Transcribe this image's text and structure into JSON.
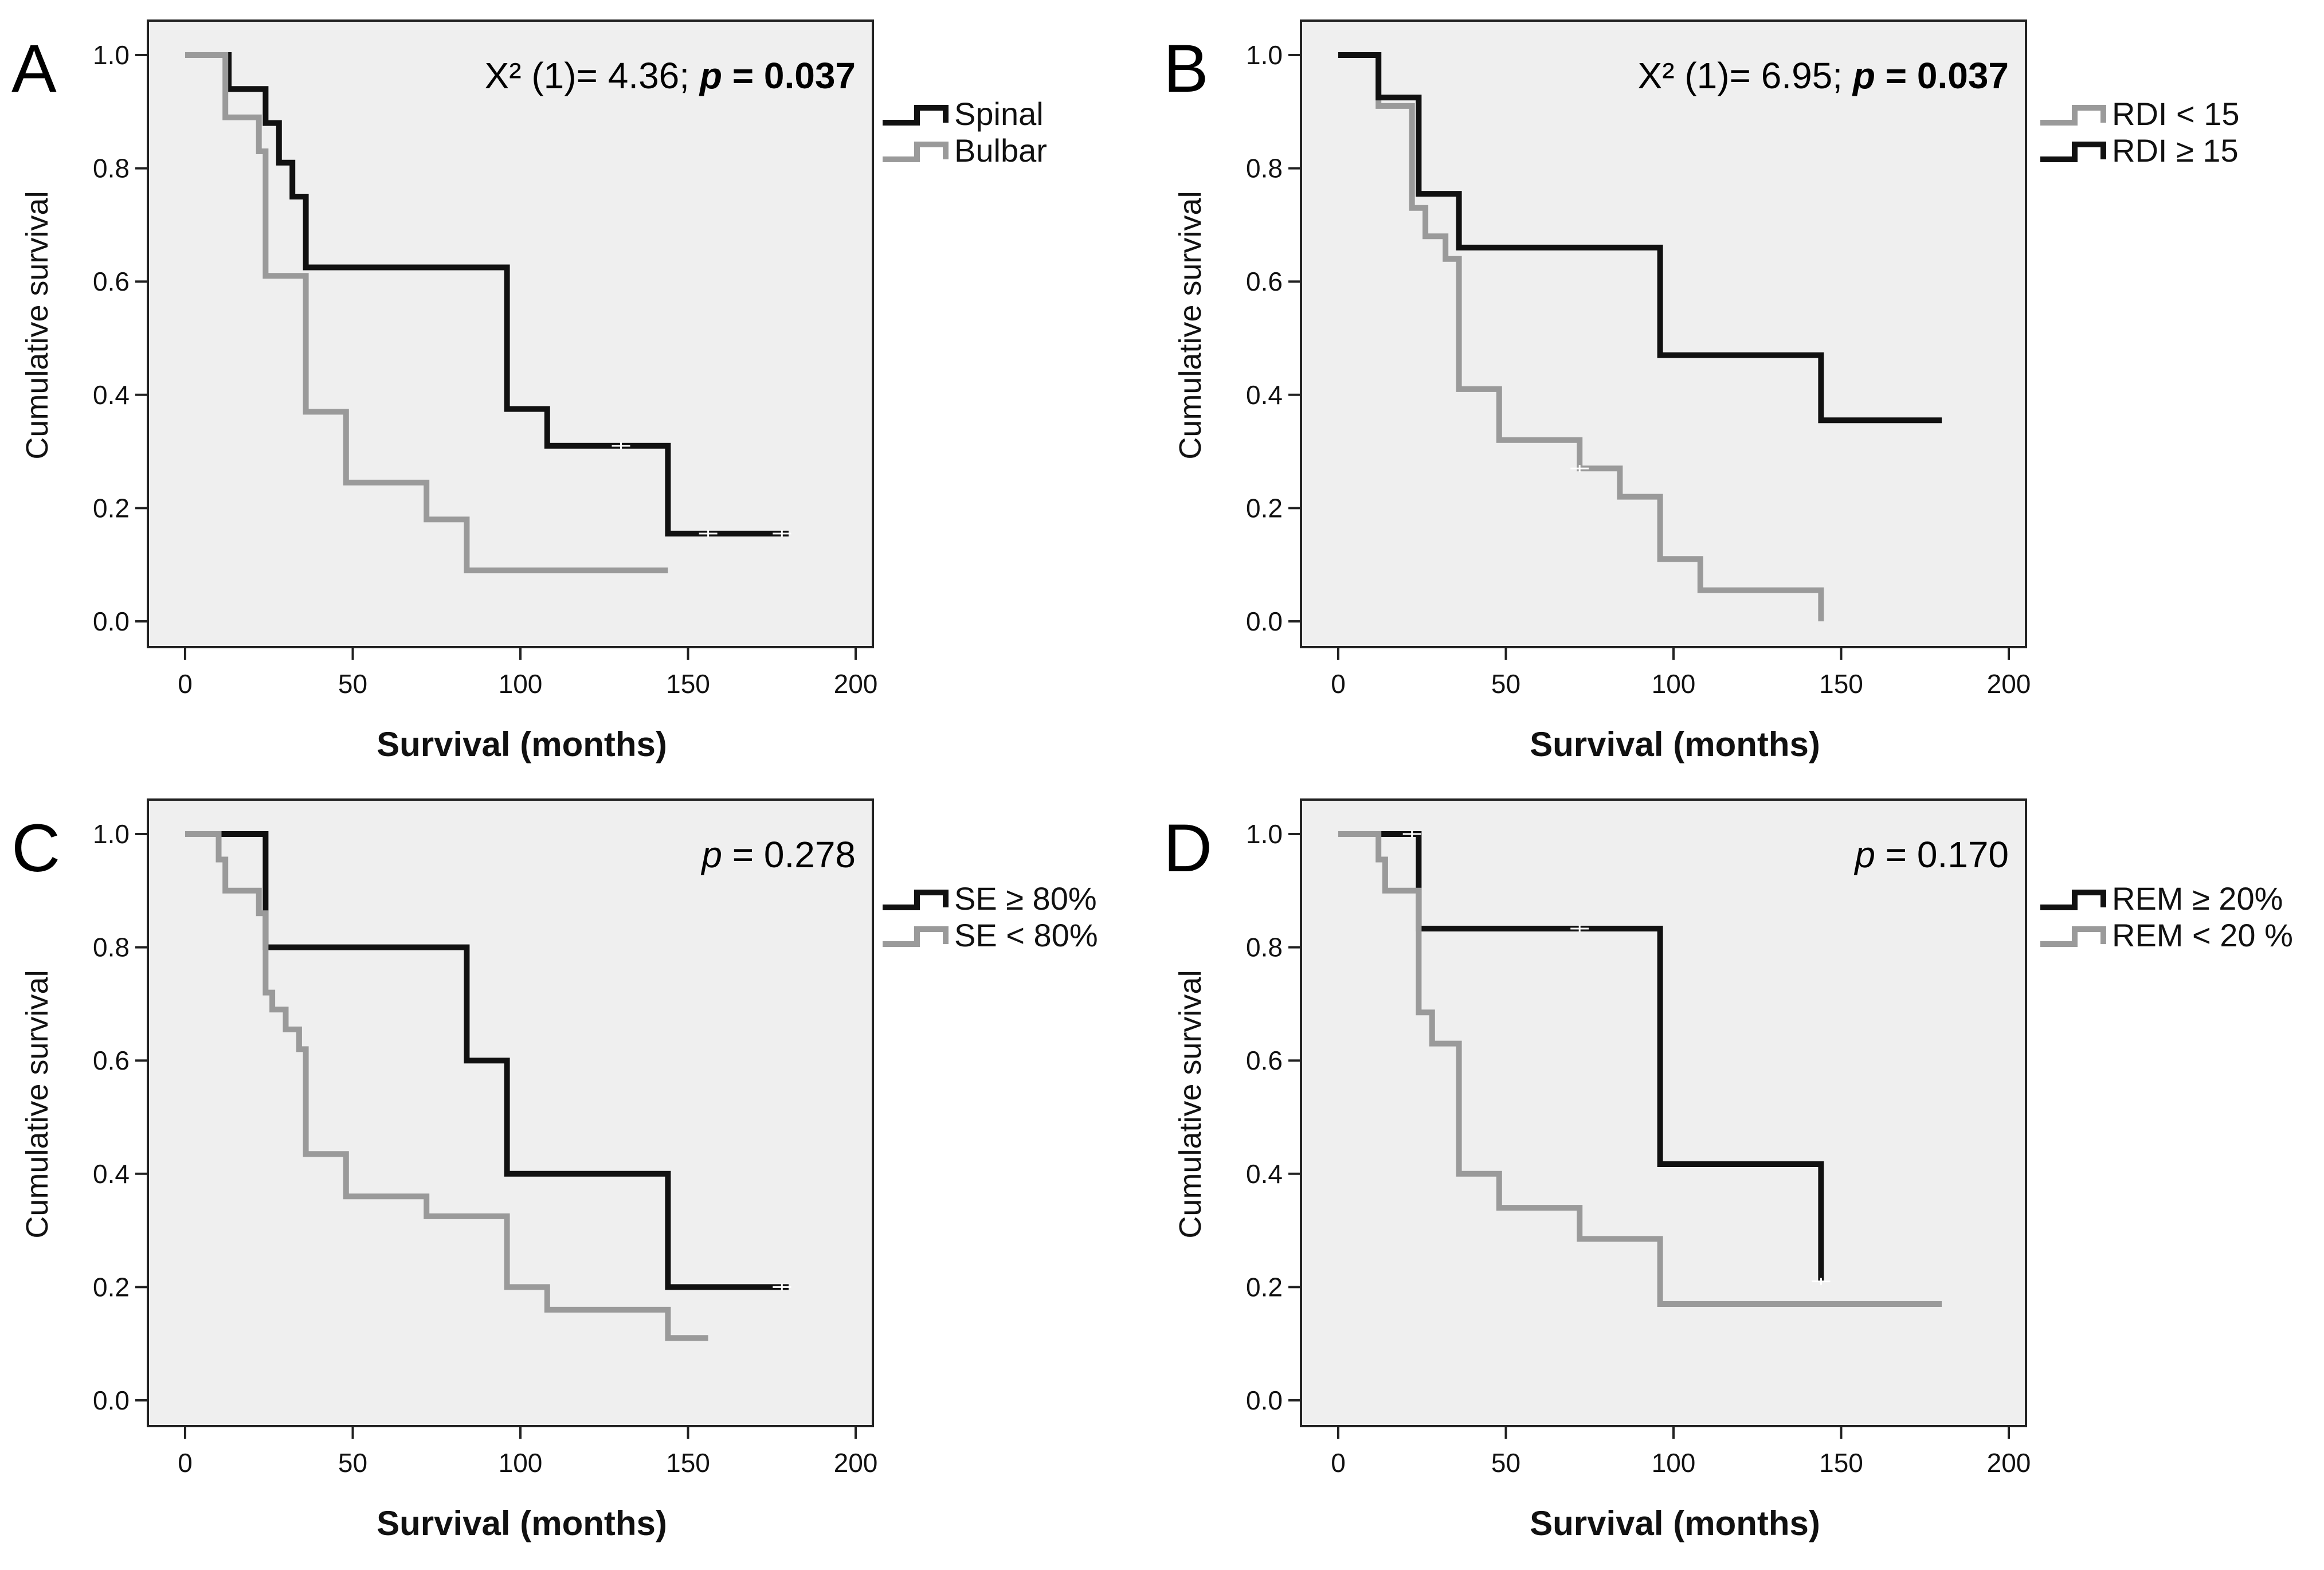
{
  "figure": {
    "colors": {
      "background": "#efefef",
      "series_dark": "#111111",
      "series_light": "#9a9a9a",
      "axis": "#222222"
    }
  },
  "chart_data": [
    {
      "id": "A",
      "panel_label": "A",
      "type": "line",
      "step": true,
      "xlabel": "Survival (months)",
      "ylabel": "Cumulative survival",
      "xlim": [
        0,
        200
      ],
      "ylim": [
        0,
        1.0
      ],
      "xticks": [
        "0",
        "50",
        "100",
        "150",
        "200"
      ],
      "yticks": [
        "0.0",
        "0.2",
        "0.4",
        "0.6",
        "0.8",
        "1.0"
      ],
      "annotation": {
        "stat_prefix": "X² (1)= 4.36; ",
        "p_label": "p",
        "p_value": " = 0.037",
        "style": "bold"
      },
      "legend_position": "right-top",
      "series": [
        {
          "name": "Spinal",
          "color": "#111111",
          "points": [
            [
              0,
              1.0
            ],
            [
              13,
              1.0
            ],
            [
              13,
              0.94
            ],
            [
              24,
              0.94
            ],
            [
              24,
              0.88
            ],
            [
              28,
              0.88
            ],
            [
              28,
              0.81
            ],
            [
              32,
              0.81
            ],
            [
              32,
              0.75
            ],
            [
              36,
              0.75
            ],
            [
              36,
              0.625
            ],
            [
              96,
              0.625
            ],
            [
              96,
              0.375
            ],
            [
              108,
              0.375
            ],
            [
              108,
              0.31
            ],
            [
              144,
              0.31
            ],
            [
              144,
              0.155
            ],
            [
              180,
              0.155
            ]
          ],
          "censored": [
            [
              130,
              0.31
            ],
            [
              156,
              0.155
            ],
            [
              178,
              0.155
            ]
          ]
        },
        {
          "name": "Bulbar",
          "color": "#9a9a9a",
          "points": [
            [
              0,
              1.0
            ],
            [
              12,
              1.0
            ],
            [
              12,
              0.89
            ],
            [
              22,
              0.89
            ],
            [
              22,
              0.83
            ],
            [
              24,
              0.83
            ],
            [
              24,
              0.61
            ],
            [
              36,
              0.61
            ],
            [
              36,
              0.37
            ],
            [
              48,
              0.37
            ],
            [
              48,
              0.245
            ],
            [
              72,
              0.245
            ],
            [
              72,
              0.18
            ],
            [
              84,
              0.18
            ],
            [
              84,
              0.09
            ],
            [
              144,
              0.09
            ]
          ],
          "censored": []
        }
      ]
    },
    {
      "id": "B",
      "panel_label": "B",
      "type": "line",
      "step": true,
      "xlabel": "Survival (months)",
      "ylabel": "Cumulative survival",
      "xlim": [
        0,
        200
      ],
      "ylim": [
        0,
        1.0
      ],
      "xticks": [
        "0",
        "50",
        "100",
        "150",
        "200"
      ],
      "yticks": [
        "0.0",
        "0.2",
        "0.4",
        "0.6",
        "0.8",
        "1.0"
      ],
      "annotation": {
        "stat_prefix": "X² (1)= 6.95; ",
        "p_label": "p",
        "p_value": " = 0.037",
        "style": "bold"
      },
      "legend_position": "right-top",
      "series": [
        {
          "name": "RDI < 15",
          "color": "#9a9a9a",
          "points": [
            [
              0,
              1.0
            ],
            [
              12,
              1.0
            ],
            [
              12,
              0.91
            ],
            [
              22,
              0.91
            ],
            [
              22,
              0.73
            ],
            [
              26,
              0.73
            ],
            [
              26,
              0.68
            ],
            [
              32,
              0.68
            ],
            [
              32,
              0.64
            ],
            [
              36,
              0.64
            ],
            [
              36,
              0.41
            ],
            [
              48,
              0.41
            ],
            [
              48,
              0.32
            ],
            [
              72,
              0.32
            ],
            [
              72,
              0.27
            ],
            [
              84,
              0.27
            ],
            [
              84,
              0.22
            ],
            [
              96,
              0.22
            ],
            [
              96,
              0.11
            ],
            [
              108,
              0.11
            ],
            [
              108,
              0.055
            ],
            [
              144,
              0.055
            ],
            [
              144,
              0.0
            ]
          ],
          "censored": [
            [
              72,
              0.27
            ]
          ]
        },
        {
          "name": "RDI ≥ 15",
          "color": "#111111",
          "points": [
            [
              0,
              1.0
            ],
            [
              12,
              1.0
            ],
            [
              12,
              0.925
            ],
            [
              24,
              0.925
            ],
            [
              24,
              0.755
            ],
            [
              36,
              0.755
            ],
            [
              36,
              0.66
            ],
            [
              96,
              0.66
            ],
            [
              96,
              0.47
            ],
            [
              144,
              0.47
            ],
            [
              144,
              0.355
            ],
            [
              180,
              0.355
            ]
          ],
          "censored": []
        }
      ]
    },
    {
      "id": "C",
      "panel_label": "C",
      "type": "line",
      "step": true,
      "xlabel": "Survival (months)",
      "ylabel": "Cumulative survival",
      "xlim": [
        0,
        200
      ],
      "ylim": [
        0,
        1.0
      ],
      "xticks": [
        "0",
        "50",
        "100",
        "150",
        "200"
      ],
      "yticks": [
        "0.0",
        "0.2",
        "0.4",
        "0.6",
        "0.8",
        "1.0"
      ],
      "annotation": {
        "stat_prefix": "",
        "p_label": "p",
        "p_value": " = 0.278",
        "style": "plain"
      },
      "legend_position": "right-top",
      "series": [
        {
          "name": "SE ≥ 80%",
          "color": "#111111",
          "points": [
            [
              0,
              1.0
            ],
            [
              24,
              1.0
            ],
            [
              24,
              0.8
            ],
            [
              84,
              0.8
            ],
            [
              84,
              0.6
            ],
            [
              96,
              0.6
            ],
            [
              96,
              0.4
            ],
            [
              144,
              0.4
            ],
            [
              144,
              0.2
            ],
            [
              180,
              0.2
            ]
          ],
          "censored": [
            [
              178,
              0.2
            ]
          ]
        },
        {
          "name": "SE < 80%",
          "color": "#9a9a9a",
          "points": [
            [
              0,
              1.0
            ],
            [
              10,
              1.0
            ],
            [
              10,
              0.955
            ],
            [
              12,
              0.955
            ],
            [
              12,
              0.9
            ],
            [
              22,
              0.9
            ],
            [
              22,
              0.86
            ],
            [
              24,
              0.86
            ],
            [
              24,
              0.72
            ],
            [
              26,
              0.72
            ],
            [
              26,
              0.69
            ],
            [
              30,
              0.69
            ],
            [
              30,
              0.655
            ],
            [
              34,
              0.655
            ],
            [
              34,
              0.62
            ],
            [
              36,
              0.62
            ],
            [
              36,
              0.435
            ],
            [
              48,
              0.435
            ],
            [
              48,
              0.36
            ],
            [
              72,
              0.36
            ],
            [
              72,
              0.325
            ],
            [
              96,
              0.325
            ],
            [
              96,
              0.2
            ],
            [
              108,
              0.2
            ],
            [
              108,
              0.16
            ],
            [
              144,
              0.16
            ],
            [
              144,
              0.11
            ],
            [
              156,
              0.11
            ]
          ],
          "censored": []
        }
      ]
    },
    {
      "id": "D",
      "panel_label": "D",
      "type": "line",
      "step": true,
      "xlabel": "Survival (months)",
      "ylabel": "Cumulative survival",
      "xlim": [
        0,
        200
      ],
      "ylim": [
        0,
        1.0
      ],
      "xticks": [
        "0",
        "50",
        "100",
        "150",
        "200"
      ],
      "yticks": [
        "0.0",
        "0.2",
        "0.4",
        "0.6",
        "0.8",
        "1.0"
      ],
      "annotation": {
        "stat_prefix": "",
        "p_label": "p",
        "p_value": " = 0.170",
        "style": "plain"
      },
      "legend_position": "right-top",
      "series": [
        {
          "name": "REM ≥ 20%",
          "color": "#111111",
          "points": [
            [
              0,
              1.0
            ],
            [
              24,
              1.0
            ],
            [
              24,
              0.833
            ],
            [
              96,
              0.833
            ],
            [
              96,
              0.417
            ],
            [
              144,
              0.417
            ],
            [
              144,
              0.21
            ]
          ],
          "censored": [
            [
              22,
              1.0
            ],
            [
              72,
              0.833
            ],
            [
              144,
              0.21
            ]
          ]
        },
        {
          "name": "REM < 20 %",
          "color": "#9a9a9a",
          "points": [
            [
              0,
              1.0
            ],
            [
              12,
              1.0
            ],
            [
              12,
              0.955
            ],
            [
              14,
              0.955
            ],
            [
              14,
              0.9
            ],
            [
              24,
              0.9
            ],
            [
              24,
              0.685
            ],
            [
              28,
              0.685
            ],
            [
              28,
              0.63
            ],
            [
              36,
              0.63
            ],
            [
              36,
              0.4
            ],
            [
              48,
              0.4
            ],
            [
              48,
              0.34
            ],
            [
              72,
              0.34
            ],
            [
              72,
              0.285
            ],
            [
              96,
              0.285
            ],
            [
              96,
              0.17
            ],
            [
              180,
              0.17
            ]
          ],
          "censored": []
        }
      ]
    }
  ]
}
